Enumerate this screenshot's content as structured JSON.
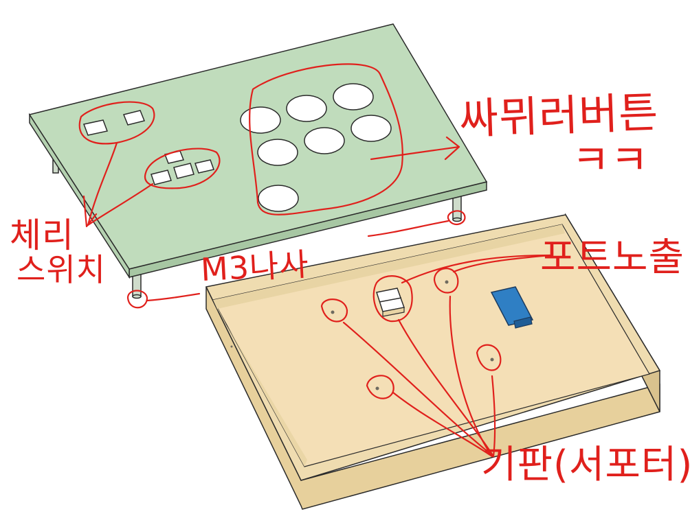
{
  "annotations": {
    "sanwa_button": "싸뮈러버튼",
    "laugh": "ㅋㅋ",
    "cherry_line1": "체리",
    "cherry_line2": "스위치",
    "screw": "M3나사",
    "port_exposed": "포트노출",
    "board_support": "기판(서포터)"
  },
  "colors": {
    "top_plate": "#c0dcbc",
    "top_plate_edge": "#a7c7a3",
    "case_floor": "#f4dfb6",
    "case_wall": "#e8d4a4",
    "annotation_ink": "#e0201c",
    "port_board": "#2f7fc4",
    "outline": "#2a2a2a"
  }
}
